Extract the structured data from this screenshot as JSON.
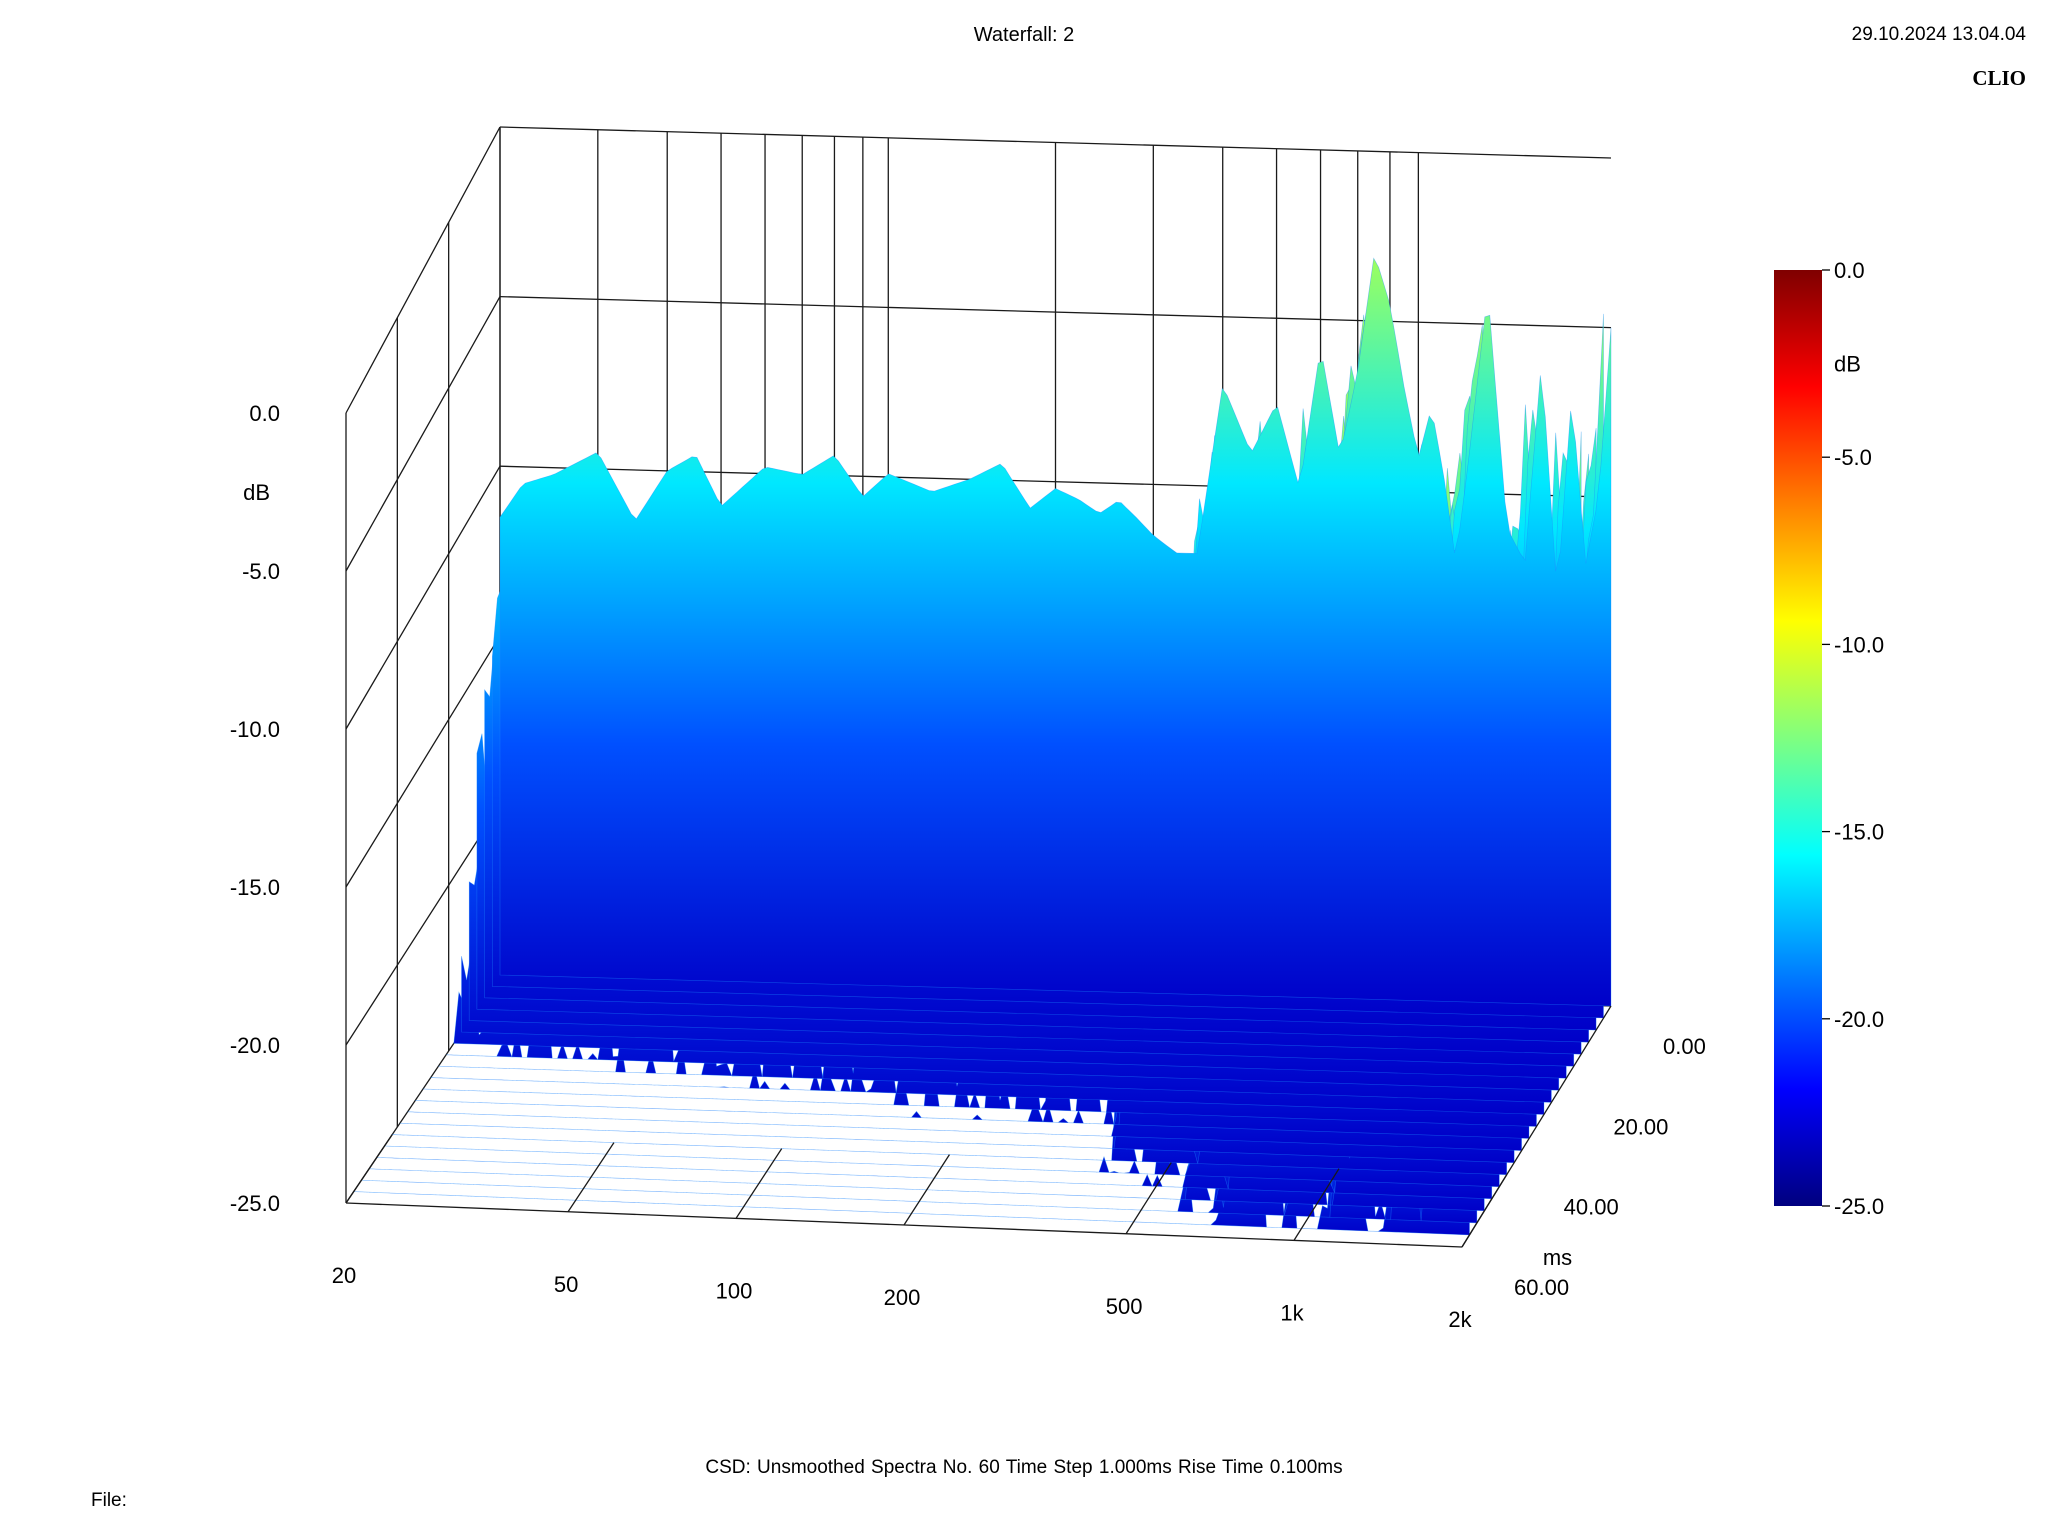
{
  "header": {
    "title": "Waterfall: 2",
    "timestamp": "29.10.2024 13.04.04",
    "brand": "CLIO"
  },
  "footer": {
    "settings": "CSD:   Unsmoothed   Spectra No. 60   Time Step 1.000ms   Rise Time 0.100ms",
    "file_label": "File:"
  },
  "chart_data": {
    "type": "waterfall",
    "title": "Waterfall: 2",
    "x_axis": {
      "label": "",
      "scale": "log",
      "range": [
        20,
        2000
      ],
      "ticks": [
        20,
        50,
        100,
        200,
        500,
        1000,
        2000
      ],
      "tick_labels": [
        "20",
        "50",
        "100",
        "200",
        "500",
        "1k",
        "2k"
      ]
    },
    "z_axis": {
      "label": "dB",
      "range": [
        -25,
        0
      ],
      "ticks": [
        0,
        -5,
        -10,
        -15,
        -20,
        -25
      ],
      "tick_labels": [
        "0.0",
        "-5.0",
        "-10.0",
        "-15.0",
        "-20.0",
        "-25.0"
      ]
    },
    "time_axis": {
      "label": "ms",
      "range": [
        0,
        60
      ],
      "ticks": [
        0,
        20,
        40,
        60
      ],
      "tick_labels": [
        "0.00",
        "20.00",
        "40.00",
        "60.00"
      ]
    },
    "colorbar": {
      "label": "dB",
      "range": [
        -25,
        0
      ],
      "ticks": [
        0,
        -5,
        -10,
        -15,
        -20,
        -25
      ],
      "tick_labels": [
        "0.0",
        "-5.0",
        "-10.0",
        "-15.0",
        "-20.0",
        "-25.0"
      ],
      "colormap": "jet"
    },
    "spectra_count": 60,
    "time_step_ms": 1.0,
    "first_spectrum": {
      "freq_hz": [
        20,
        22,
        25,
        30,
        35,
        40,
        45,
        50,
        60,
        70,
        80,
        90,
        100,
        120,
        140,
        160,
        180,
        200,
        220,
        240,
        260,
        280,
        300,
        330,
        360,
        400,
        450,
        500,
        550,
        600,
        650,
        700,
        750,
        800,
        850,
        900,
        950,
        1000,
        1050,
        1100,
        1200,
        1300,
        1400,
        1500,
        1600,
        1700,
        1800,
        1900,
        2000
      ],
      "level_db": [
        -11.5,
        -10.5,
        -10.2,
        -9.5,
        -11.5,
        -10.0,
        -9.5,
        -11.0,
        -9.8,
        -10.0,
        -9.4,
        -10.6,
        -9.9,
        -10.4,
        -10.0,
        -9.5,
        -10.8,
        -10.2,
        -10.5,
        -10.9,
        -10.5,
        -11.0,
        -11.5,
        -12.0,
        -12.0,
        -7.0,
        -9.0,
        -7.5,
        -10.0,
        -5.8,
        -9.0,
        -6.5,
        -3.0,
        -4.5,
        -7.0,
        -9.0,
        -7.5,
        -9.5,
        -12.0,
        -9.5,
        -4.0,
        -11.0,
        -12.0,
        -6.0,
        -13.0,
        -7.0,
        -12.0,
        -10.0,
        -5.0
      ]
    }
  }
}
